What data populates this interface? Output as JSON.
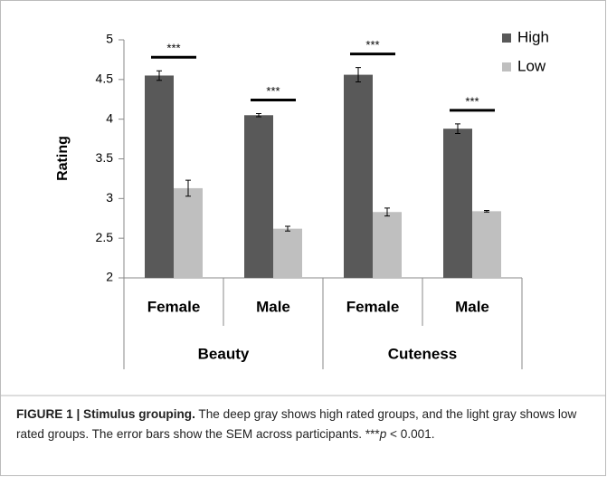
{
  "chart_data": {
    "type": "bar",
    "ylabel": "Rating",
    "categories": [
      "Female",
      "Male",
      "Female",
      "Male"
    ],
    "groups": [
      "Beauty",
      "Cuteness"
    ],
    "series": [
      {
        "name": "High",
        "color": "#595959",
        "values": [
          4.55,
          4.05,
          4.56,
          3.88
        ],
        "errors": [
          0.06,
          0.02,
          0.09,
          0.06
        ]
      },
      {
        "name": "Low",
        "color": "#bfbfbf",
        "values": [
          3.13,
          2.62,
          2.83,
          2.84
        ],
        "errors": [
          0.1,
          0.03,
          0.05,
          0.01
        ]
      }
    ],
    "annotations": [
      "***",
      "***",
      "***",
      "***"
    ],
    "ylim": [
      2,
      5
    ],
    "yticks": [
      2,
      2.5,
      3,
      3.5,
      4,
      4.5,
      5
    ],
    "legend": "upper right"
  },
  "caption": {
    "title": "FIGURE 1 | Stimulus grouping.",
    "text": " The deep gray shows high rated groups, and the light gray shows low rated groups. The error bars show the SEM across participants. ***",
    "italic": "p",
    "tail": " < 0.001."
  }
}
